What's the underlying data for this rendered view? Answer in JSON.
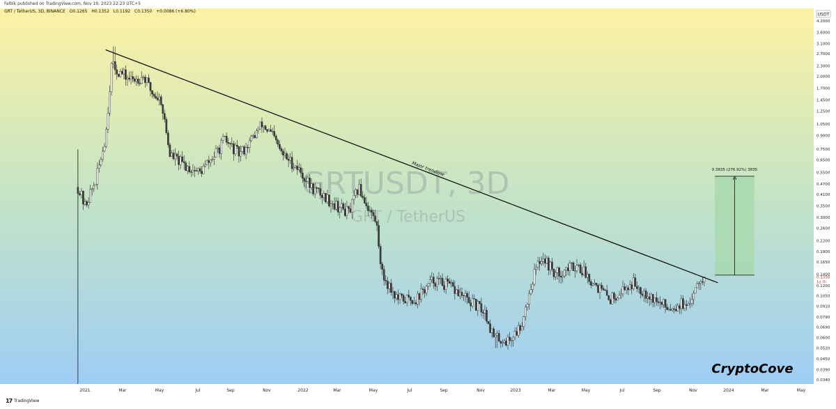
{
  "publisher_line": "Falbik published on TradingView.com, Nov 19, 2023 22:23 UTC+5",
  "header": {
    "symbol": "GRT / TetherUS, 3D, BINANCE",
    "open": "O0.1265",
    "high": "H0.1352",
    "low": "L0.1192",
    "close": "C0.1350",
    "change": "+0.0086 (+6.80%)"
  },
  "watermark": {
    "ticker": "GRTUSDT, 3D",
    "name": "GRT / TetherUS"
  },
  "currency_badge": "USDT",
  "price_tag": {
    "value": "0.1350",
    "timer": "1d 7h"
  },
  "trendline_label": "Major trendline",
  "measure_label": "0.3835 (276.92%) 3835",
  "brand": "CryptoCove",
  "footer_brand": "TradingView",
  "colors": {
    "bg_top": "#fdf2a4",
    "bg_mid": "#c4e4c6",
    "bg_bottom": "#9fcdf5",
    "candles": "#3a3a3a",
    "trendline": "#111111",
    "measure_fill": "#a8d9ae",
    "measure_edge": "#222222",
    "price_tag_text": "#d32f2f"
  },
  "chart_data": {
    "type": "candlestick",
    "symbol": "GRTUSDT",
    "interval": "3D",
    "y_scale": "log",
    "ylim": [
      0.034,
      4.2
    ],
    "y_ticks": [
      "4.2000",
      "3.6000",
      "3.1000",
      "2.7000",
      "2.3000",
      "2.0000",
      "1.7000",
      "1.4500",
      "1.2500",
      "1.0500",
      "0.9000",
      "0.7500",
      "0.6500",
      "0.5500",
      "0.4700",
      "0.4100",
      "0.3500",
      "0.3000",
      "0.2600",
      "0.2200",
      "0.1900",
      "0.1650",
      "0.1400",
      "0.1200",
      "0.1050",
      "0.0910",
      "0.0790",
      "0.0690",
      "0.0600",
      "0.0520",
      "0.0450",
      "0.0390",
      "0.0340"
    ],
    "x_ticks": [
      "2021",
      "Mar",
      "May",
      "Jul",
      "Sep",
      "Nov",
      "2022",
      "Mar",
      "May",
      "Jul",
      "Sep",
      "Nov",
      "2023",
      "Mar",
      "May",
      "Jul",
      "Sep",
      "Nov",
      "2024",
      "Mar",
      "May"
    ],
    "price_path": [
      [
        "2020-12-20",
        0.45
      ],
      [
        "2021-01-01",
        0.35
      ],
      [
        "2021-01-20",
        0.5
      ],
      [
        "2021-02-05",
        0.9
      ],
      [
        "2021-02-15",
        2.3
      ],
      [
        "2021-03-01",
        2.1
      ],
      [
        "2021-03-20",
        1.9
      ],
      [
        "2021-04-10",
        2.0
      ],
      [
        "2021-04-25",
        1.6
      ],
      [
        "2021-05-10",
        1.45
      ],
      [
        "2021-05-25",
        0.7
      ],
      [
        "2021-06-20",
        0.6
      ],
      [
        "2021-07-15",
        0.55
      ],
      [
        "2021-08-10",
        0.7
      ],
      [
        "2021-08-25",
        0.85
      ],
      [
        "2021-09-20",
        0.7
      ],
      [
        "2021-10-10",
        0.85
      ],
      [
        "2021-10-28",
        1.05
      ],
      [
        "2021-11-15",
        0.9
      ],
      [
        "2021-12-01",
        0.7
      ],
      [
        "2021-12-25",
        0.6
      ],
      [
        "2022-01-20",
        0.45
      ],
      [
        "2022-02-10",
        0.4
      ],
      [
        "2022-03-05",
        0.35
      ],
      [
        "2022-03-25",
        0.32
      ],
      [
        "2022-04-10",
        0.45
      ],
      [
        "2022-04-25",
        0.35
      ],
      [
        "2022-05-10",
        0.28
      ],
      [
        "2022-05-20",
        0.14
      ],
      [
        "2022-06-15",
        0.1
      ],
      [
        "2022-07-15",
        0.1
      ],
      [
        "2022-08-15",
        0.13
      ],
      [
        "2022-09-10",
        0.12
      ],
      [
        "2022-10-10",
        0.1
      ],
      [
        "2022-11-10",
        0.085
      ],
      [
        "2022-11-25",
        0.06
      ],
      [
        "2022-12-20",
        0.057
      ],
      [
        "2023-01-10",
        0.07
      ],
      [
        "2023-02-01",
        0.14
      ],
      [
        "2023-02-15",
        0.18
      ],
      [
        "2023-03-10",
        0.14
      ],
      [
        "2023-04-15",
        0.16
      ],
      [
        "2023-05-10",
        0.13
      ],
      [
        "2023-06-10",
        0.1
      ],
      [
        "2023-06-25",
        0.11
      ],
      [
        "2023-07-20",
        0.125
      ],
      [
        "2023-08-10",
        0.11
      ],
      [
        "2023-09-01",
        0.095
      ],
      [
        "2023-09-20",
        0.09
      ],
      [
        "2023-10-10",
        0.095
      ],
      [
        "2023-10-20",
        0.085
      ],
      [
        "2023-11-01",
        0.12
      ],
      [
        "2023-11-10",
        0.135
      ],
      [
        "2023-11-19",
        0.135
      ]
    ],
    "trendline": [
      [
        "2021-02-05",
        2.85
      ],
      [
        "2023-12-10",
        0.125
      ]
    ],
    "measure": {
      "start": "2023-12-05",
      "end": "2024-02-10",
      "from": 0.1385,
      "to": 0.522
    },
    "ath_wick": 2.98,
    "low_wick": 0.052
  }
}
